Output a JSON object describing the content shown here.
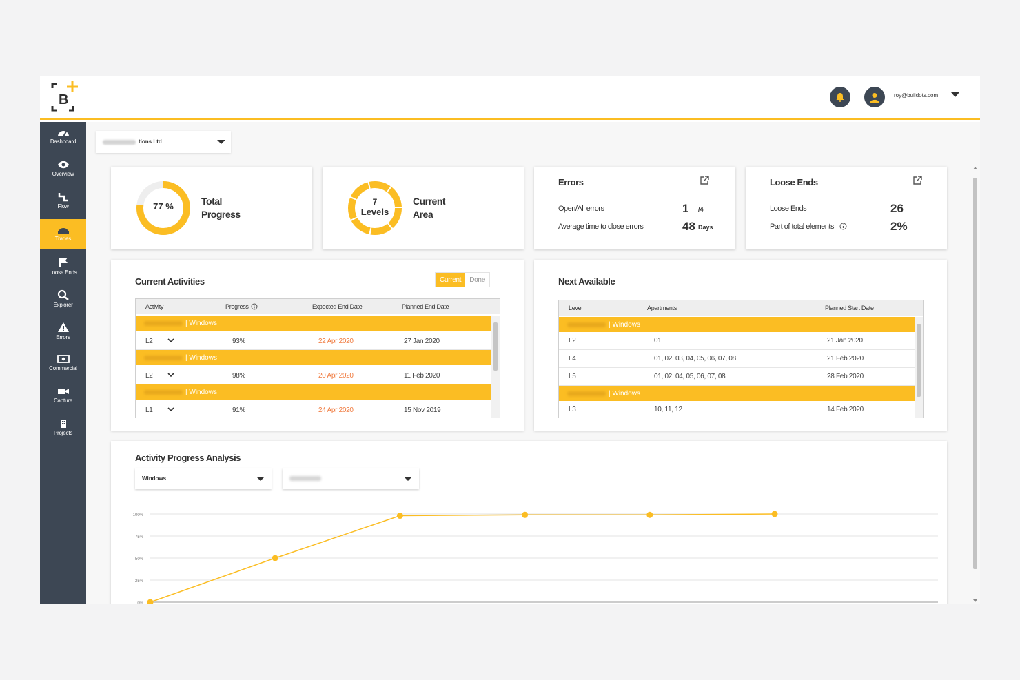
{
  "header": {
    "user_email": "roy@buildots.com",
    "logo_text": "B"
  },
  "sidebar": {
    "items": [
      {
        "label": "Dashboard",
        "icon": "dashboard-icon",
        "active": false
      },
      {
        "label": "Overview",
        "icon": "eye-icon",
        "active": false
      },
      {
        "label": "Flow",
        "icon": "flow-icon",
        "active": false
      },
      {
        "label": "Trades",
        "icon": "helmet-icon",
        "active": true
      },
      {
        "label": "Loose Ends",
        "icon": "flag-icon",
        "active": false
      },
      {
        "label": "Explorer",
        "icon": "search-icon",
        "active": false
      },
      {
        "label": "Errors",
        "icon": "warning-icon",
        "active": false
      },
      {
        "label": "Commercial",
        "icon": "money-icon",
        "active": false
      },
      {
        "label": "Capture",
        "icon": "camera-icon",
        "active": false
      },
      {
        "label": "Projects",
        "icon": "building-icon",
        "active": false
      }
    ]
  },
  "company_selector": {
    "value_suffix": "tions Ltd"
  },
  "cards": {
    "progress": {
      "value": "77 %",
      "label_line1": "Total",
      "label_line2": "Progress",
      "fraction": 0.77
    },
    "area": {
      "value_line1": "7",
      "value_line2": "Levels",
      "label_line1": "Current",
      "label_line2": "Area"
    },
    "errors": {
      "title": "Errors",
      "row1_label": "Open/All errors",
      "row1_value": "1",
      "row1_unit": "/4",
      "row2_label": "Average time to close errors",
      "row2_value": "48",
      "row2_unit": "Days"
    },
    "loose_ends": {
      "title": "Loose Ends",
      "row1_label": "Loose Ends",
      "row1_value": "26",
      "row2_label": "Part of total elements",
      "row2_value": "2%"
    }
  },
  "current_activities": {
    "title": "Current Activities",
    "toggle": {
      "current": "Current",
      "done": "Done"
    },
    "columns": {
      "activity": "Activity",
      "progress": "Progress",
      "expected": "Expected End Date",
      "planned": "Planned End Date"
    },
    "groups": [
      {
        "trade": "| Windows",
        "level": "L2",
        "progress": "93%",
        "expected": "22 Apr 2020",
        "planned": "27 Jan 2020"
      },
      {
        "trade": "| Windows",
        "level": "L2",
        "progress": "98%",
        "expected": "20 Apr 2020",
        "planned": "11 Feb 2020"
      },
      {
        "trade": "| Windows",
        "level": "L1",
        "progress": "91%",
        "expected": "24 Apr 2020",
        "planned": "15 Nov 2019"
      }
    ]
  },
  "next_available": {
    "title": "Next Available",
    "columns": {
      "level": "Level",
      "apartments": "Apartments",
      "planned_start": "Planned Start Date"
    },
    "group1": {
      "trade": "| Windows",
      "rows": [
        {
          "level": "L2",
          "apartments": "01",
          "date": "21 Jan 2020"
        },
        {
          "level": "L4",
          "apartments": "01, 02, 03, 04, 05, 06, 07, 08",
          "date": "21 Feb 2020"
        },
        {
          "level": "L5",
          "apartments": "01, 02, 04, 05, 06, 07, 08",
          "date": "28 Feb 2020"
        }
      ]
    },
    "group2": {
      "trade": "| Windows",
      "rows": [
        {
          "level": "L3",
          "apartments": "10, 11, 12",
          "date": "14 Feb 2020"
        }
      ]
    }
  },
  "analysis": {
    "title": "Activity Progress Analysis",
    "select_trade": "Windows",
    "chart_data": {
      "type": "line",
      "yticks": [
        "100%",
        "75%",
        "50%",
        "25%",
        "0%"
      ],
      "ylim": [
        0,
        100
      ],
      "x": [
        0,
        1,
        2,
        3,
        4,
        5
      ],
      "series": [
        {
          "values": [
            0,
            50,
            98,
            99,
            99,
            100
          ]
        }
      ],
      "color": "#fbbd23"
    }
  },
  "colors": {
    "accent": "#fbbd23",
    "sidebar": "#3d4754",
    "overdue": "#f07a3e"
  }
}
